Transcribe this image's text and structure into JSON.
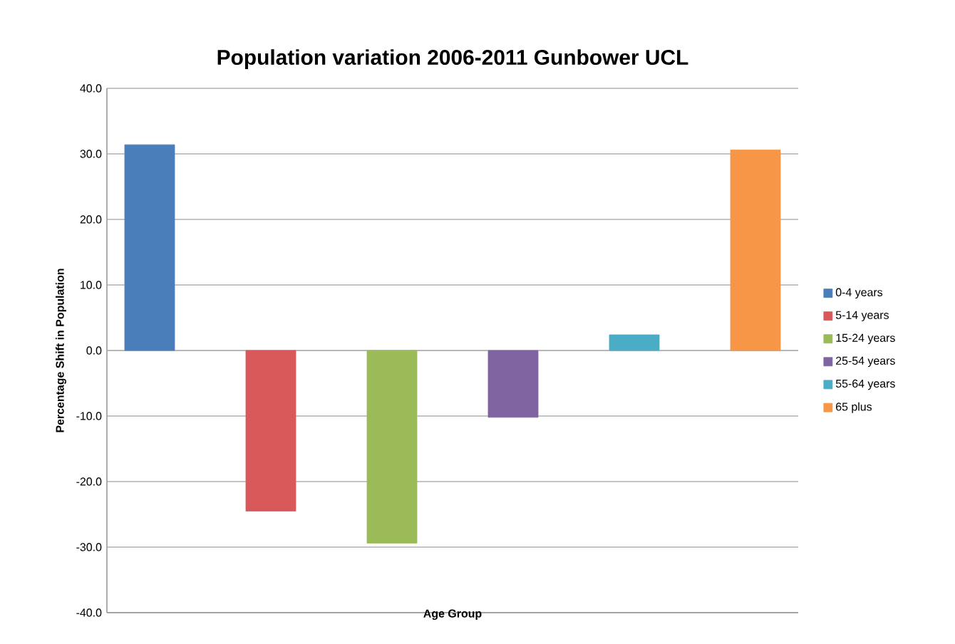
{
  "chart_data": {
    "type": "bar",
    "title": "Population variation 2006-2011 Gunbower UCL",
    "xlabel": "Age Group",
    "ylabel": "Percentage Shift in Population",
    "categories": [
      null
    ],
    "series": [
      {
        "name": "0-4 years",
        "color": "#4a7ebb",
        "values": [
          31.4
        ]
      },
      {
        "name": "5-14 years",
        "color": "#d9585a",
        "values": [
          -24.5
        ]
      },
      {
        "name": "15-24 years",
        "color": "#9bbb59",
        "values": [
          -29.4
        ]
      },
      {
        "name": "25-54 years",
        "color": "#8064a2",
        "values": [
          -10.2
        ]
      },
      {
        "name": "55-64 years",
        "color": "#4bacc6",
        "values": [
          2.4
        ]
      },
      {
        "name": "65 plus",
        "color": "#f79646",
        "values": [
          30.6
        ]
      }
    ],
    "ylim": [
      -40,
      40
    ],
    "yticks": [
      {
        "value": -40,
        "label": "-40.0"
      },
      {
        "value": -30,
        "label": "-30.0"
      },
      {
        "value": -20,
        "label": "-20.0"
      },
      {
        "value": -10,
        "label": "-10.0"
      },
      {
        "value": 0,
        "label": "0.0"
      },
      {
        "value": 10,
        "label": "10.0"
      },
      {
        "value": 20,
        "label": "20.0"
      },
      {
        "value": 30,
        "label": "30.0"
      },
      {
        "value": 40,
        "label": "40.0"
      }
    ],
    "grid": "y",
    "legend": "right"
  }
}
